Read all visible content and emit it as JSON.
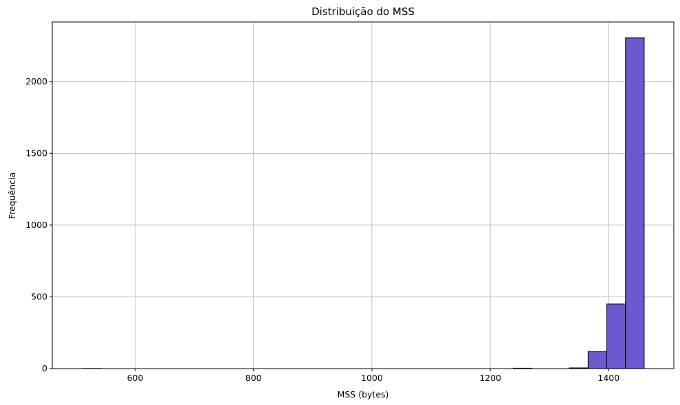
{
  "chart_data": {
    "type": "bar",
    "title": "Distribuição do MSS",
    "xlabel": "MSS (bytes)",
    "ylabel": "Frequência",
    "xlim": [
      460,
      1510
    ],
    "ylim": [
      0,
      2415
    ],
    "xticks": [
      600,
      800,
      1000,
      1200,
      1400
    ],
    "yticks": [
      0,
      500,
      1000,
      1500,
      2000
    ],
    "grid": true,
    "bar_color": "#6a5acd",
    "edge_color": "#000000",
    "grid_color": "#b0b0b0",
    "bin_width": 31.6,
    "bins": [
      {
        "x0": 512.0,
        "x1": 543.6,
        "count": 1
      },
      {
        "x0": 543.6,
        "x1": 575.2,
        "count": 0
      },
      {
        "x0": 575.2,
        "x1": 606.8,
        "count": 0
      },
      {
        "x0": 606.8,
        "x1": 638.4,
        "count": 0
      },
      {
        "x0": 638.4,
        "x1": 670.0,
        "count": 0
      },
      {
        "x0": 670.0,
        "x1": 701.6,
        "count": 0
      },
      {
        "x0": 701.6,
        "x1": 733.2,
        "count": 0
      },
      {
        "x0": 733.2,
        "x1": 764.8,
        "count": 0
      },
      {
        "x0": 764.8,
        "x1": 796.4,
        "count": 0
      },
      {
        "x0": 796.4,
        "x1": 828.0,
        "count": 0
      },
      {
        "x0": 828.0,
        "x1": 859.6,
        "count": 0
      },
      {
        "x0": 859.6,
        "x1": 891.2,
        "count": 0
      },
      {
        "x0": 891.2,
        "x1": 922.8,
        "count": 0
      },
      {
        "x0": 922.8,
        "x1": 954.4,
        "count": 0
      },
      {
        "x0": 954.4,
        "x1": 986.0,
        "count": 0
      },
      {
        "x0": 986.0,
        "x1": 1017.6,
        "count": 0
      },
      {
        "x0": 1017.6,
        "x1": 1049.2,
        "count": 0
      },
      {
        "x0": 1049.2,
        "x1": 1080.8,
        "count": 0
      },
      {
        "x0": 1080.8,
        "x1": 1112.4,
        "count": 0
      },
      {
        "x0": 1112.4,
        "x1": 1144.0,
        "count": 0
      },
      {
        "x0": 1144.0,
        "x1": 1175.6,
        "count": 0
      },
      {
        "x0": 1175.6,
        "x1": 1207.2,
        "count": 0
      },
      {
        "x0": 1207.2,
        "x1": 1238.8,
        "count": 0
      },
      {
        "x0": 1238.8,
        "x1": 1270.4,
        "count": 3
      },
      {
        "x0": 1270.4,
        "x1": 1302.0,
        "count": 0
      },
      {
        "x0": 1302.0,
        "x1": 1333.6,
        "count": 0
      },
      {
        "x0": 1333.6,
        "x1": 1365.2,
        "count": 5
      },
      {
        "x0": 1365.2,
        "x1": 1396.8,
        "count": 120
      },
      {
        "x0": 1396.8,
        "x1": 1428.4,
        "count": 450
      },
      {
        "x0": 1428.4,
        "x1": 1460.0,
        "count": 2305
      }
    ]
  }
}
